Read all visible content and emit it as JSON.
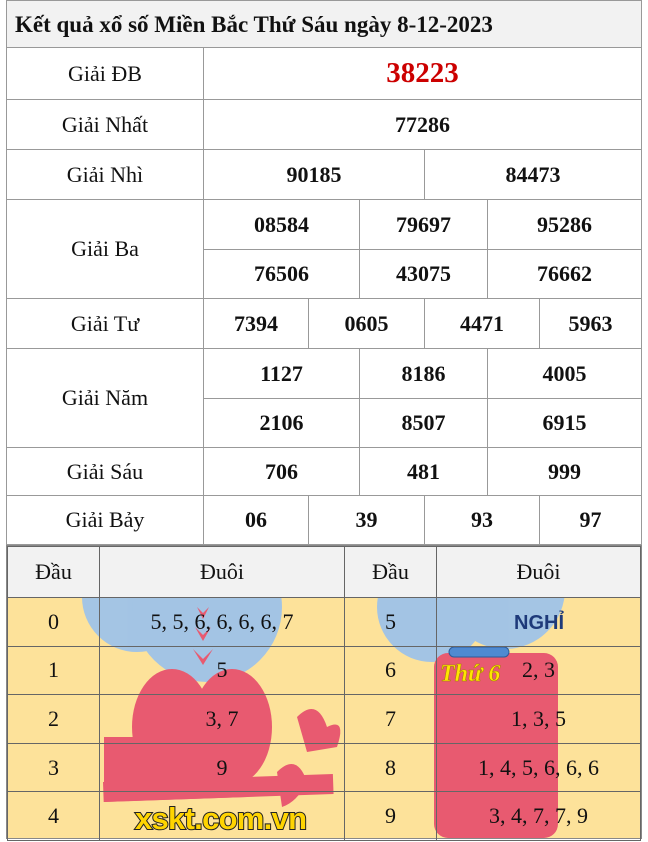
{
  "title": "Kết quả xổ số Miền Bắc Thứ Sáu ngày 8-12-2023",
  "prizes": {
    "db": {
      "label": "Giải ĐB",
      "values": [
        "38223"
      ]
    },
    "nhat": {
      "label": "Giải Nhất",
      "values": [
        "77286"
      ]
    },
    "nhi": {
      "label": "Giải Nhì",
      "values": [
        "90185",
        "84473"
      ]
    },
    "ba": {
      "label": "Giải Ba",
      "values": [
        "08584",
        "79697",
        "95286",
        "76506",
        "43075",
        "76662"
      ]
    },
    "tu": {
      "label": "Giải Tư",
      "values": [
        "7394",
        "0605",
        "4471",
        "5963"
      ]
    },
    "nam": {
      "label": "Giải Năm",
      "values": [
        "1127",
        "8186",
        "4005",
        "2106",
        "8507",
        "6915"
      ]
    },
    "sau": {
      "label": "Giải Sáu",
      "values": [
        "706",
        "481",
        "999"
      ]
    },
    "bay": {
      "label": "Giải Bảy",
      "values": [
        "06",
        "39",
        "93",
        "97"
      ]
    }
  },
  "loto": {
    "header": {
      "dau": "Đầu",
      "duoi": "Đuôi"
    },
    "rows": [
      {
        "dau": "0",
        "duoi": "5, 5, 6, 6, 6, 6, 7",
        "dau2": "5",
        "duoi2": ""
      },
      {
        "dau": "1",
        "duoi": "5",
        "dau2": "6",
        "duoi2": "2, 3"
      },
      {
        "dau": "2",
        "duoi": "3, 7",
        "dau2": "7",
        "duoi2": "1, 3, 5"
      },
      {
        "dau": "3",
        "duoi": "9",
        "dau2": "8",
        "duoi2": "1, 4, 5, 6, 6, 6"
      },
      {
        "dau": "4",
        "duoi": "",
        "dau2": "9",
        "duoi2": "3, 4, 7, 7, 9"
      }
    ]
  },
  "decor": {
    "calendar_text": "Thứ 6",
    "cloud_text": "NGHỈ",
    "watermark": "xskt.com.vn"
  },
  "colors": {
    "special": "#cc0000",
    "loto_bg": "#fde29a",
    "header_bg": "#f2f2f2",
    "bird": "#e85a70",
    "cloud": "#9fc3e8"
  }
}
